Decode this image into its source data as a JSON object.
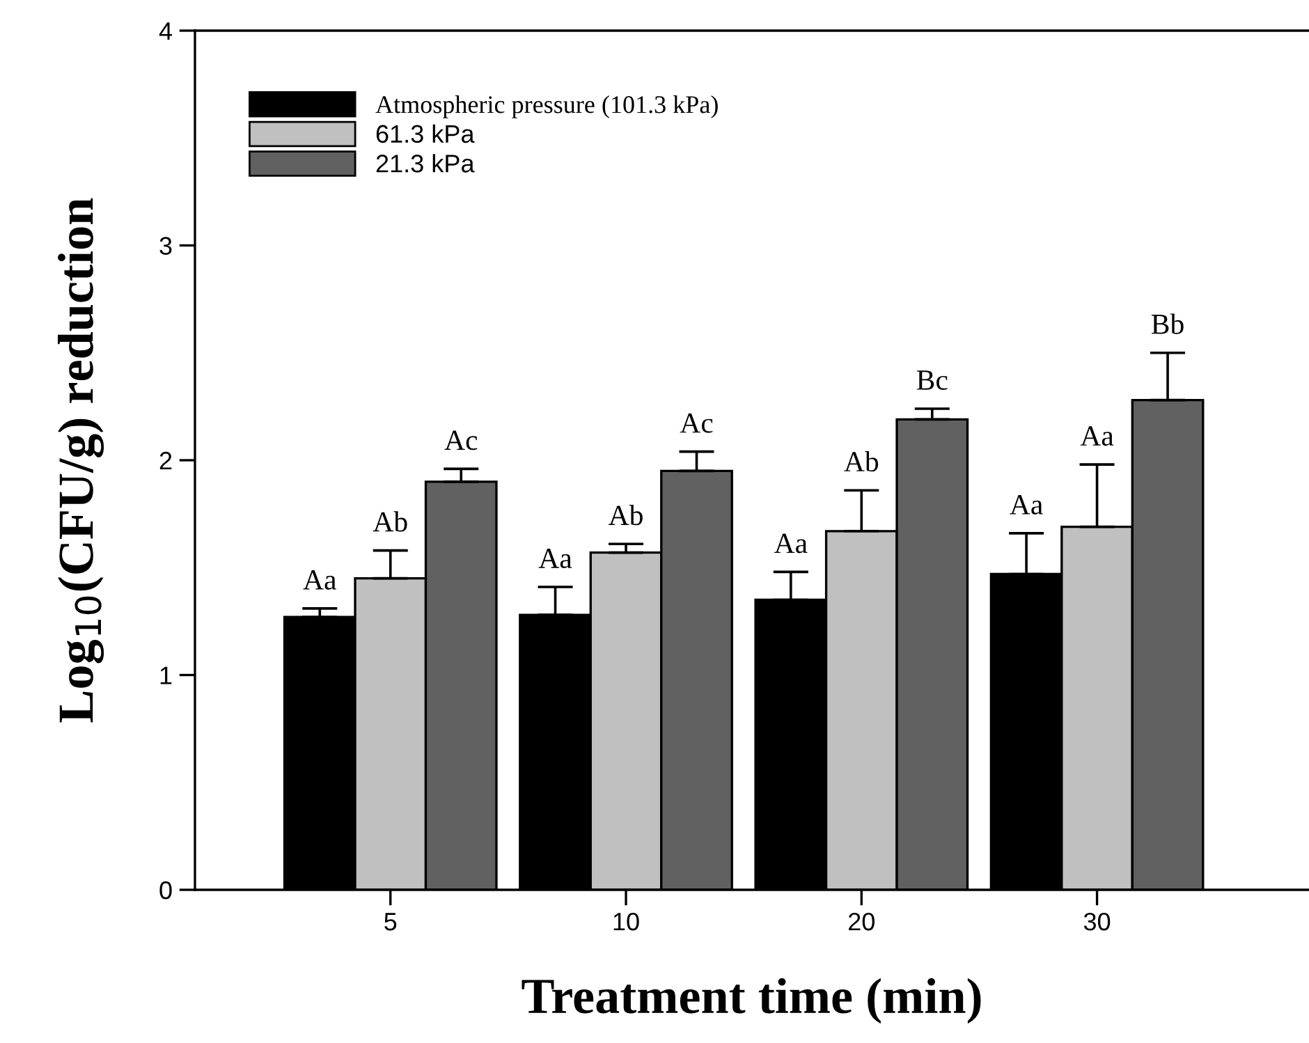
{
  "chart_data": {
    "type": "bar",
    "xlabel": "Treatment time (min)",
    "ylabel": "Log$_{10}$(CFU/g) reduction",
    "categories": [
      "5",
      "10",
      "20",
      "30"
    ],
    "series": [
      {
        "name": "Atmospheric pressure (101.3 kPa)",
        "color": "#000000",
        "values": [
          1.27,
          1.28,
          1.35,
          1.47
        ],
        "errors": [
          [
            1.27,
            1.31
          ],
          [
            1.28,
            1.41
          ],
          [
            1.35,
            1.48
          ],
          [
            1.47,
            1.66
          ]
        ],
        "value_labels": [
          "Aa",
          "Aa",
          "Aa",
          "Aa"
        ]
      },
      {
        "name": "61.3 kPa",
        "color": "#c0c0c0",
        "values": [
          1.45,
          1.57,
          1.67,
          1.69
        ],
        "errors": [
          [
            1.45,
            1.58
          ],
          [
            1.57,
            1.61
          ],
          [
            1.67,
            1.86
          ],
          [
            1.69,
            1.98
          ]
        ],
        "value_labels": [
          "Ab",
          "Ab",
          "Ab",
          "Aa"
        ]
      },
      {
        "name": "21.3 kPa",
        "color": "#616161",
        "values": [
          1.9,
          1.95,
          2.19,
          2.28
        ],
        "errors": [
          [
            1.9,
            1.96
          ],
          [
            1.95,
            2.04
          ],
          [
            2.19,
            2.24
          ],
          [
            2.28,
            2.5
          ]
        ],
        "value_labels": [
          "Ac",
          "Ac",
          "Bc",
          "Bb"
        ]
      }
    ],
    "ylim": [
      0,
      4
    ],
    "yticks": [
      0,
      1,
      2,
      3,
      4
    ],
    "grid": false,
    "legend": "top left"
  }
}
